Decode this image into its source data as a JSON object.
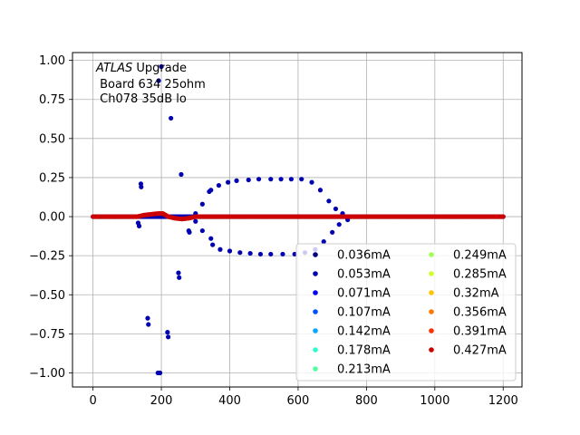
{
  "chart_data": {
    "type": "scatter",
    "title": "",
    "xlabel": "",
    "ylabel": "",
    "xlim": [
      -60,
      1255
    ],
    "ylim": [
      -1.09,
      1.05
    ],
    "x_ticks": [
      0,
      200,
      400,
      600,
      800,
      1000,
      1200
    ],
    "y_ticks": [
      -1.0,
      -0.75,
      -0.5,
      -0.25,
      0.0,
      0.25,
      0.5,
      0.75,
      1.0
    ],
    "x_tick_labels": [
      "0",
      "200",
      "400",
      "600",
      "800",
      "1000",
      "1200"
    ],
    "y_tick_labels": [
      "−1.00",
      "−0.75",
      "−0.50",
      "−0.25",
      "0.00",
      "0.25",
      "0.50",
      "0.75",
      "1.00"
    ],
    "grid": true,
    "legend_position": "lower-right",
    "legend_columns": 2,
    "annotation": {
      "italic": "ATLAS",
      "line1_rest": " Upgrade",
      "line2": " Board 634 25ohm",
      "line3": " Ch078 35dB lo"
    },
    "series": [
      {
        "name": "0.036mA",
        "color": "#00007f"
      },
      {
        "name": "0.053mA",
        "color": "#0000b2"
      },
      {
        "name": "0.071mA",
        "color": "#0000f0"
      },
      {
        "name": "0.107mA",
        "color": "#0054ff"
      },
      {
        "name": "0.142mA",
        "color": "#00a8ff"
      },
      {
        "name": "0.178mA",
        "color": "#29ffce"
      },
      {
        "name": "0.213mA",
        "color": "#52ff9e"
      },
      {
        "name": "0.249mA",
        "color": "#a0ff56"
      },
      {
        "name": "0.285mA",
        "color": "#ceff29"
      },
      {
        "name": "0.32mA",
        "color": "#ffc400"
      },
      {
        "name": "0.356mA",
        "color": "#ff7a00"
      },
      {
        "name": "0.391mA",
        "color": "#ff3000"
      },
      {
        "name": "0.427mA",
        "color": "#cc0000"
      }
    ],
    "outliers": [
      {
        "x": 200,
        "y": 0.96
      },
      {
        "x": 192,
        "y": 0.87
      },
      {
        "x": 228,
        "y": 0.63
      },
      {
        "x": 258,
        "y": 0.27
      },
      {
        "x": 140,
        "y": 0.21
      },
      {
        "x": 141,
        "y": 0.19
      },
      {
        "x": 132,
        "y": -0.04
      },
      {
        "x": 135,
        "y": -0.06
      },
      {
        "x": 160,
        "y": -0.65
      },
      {
        "x": 162,
        "y": -0.69
      },
      {
        "x": 190,
        "y": -1.0
      },
      {
        "x": 196,
        "y": -1.0
      },
      {
        "x": 218,
        "y": -0.74
      },
      {
        "x": 220,
        "y": -0.77
      },
      {
        "x": 250,
        "y": -0.36
      },
      {
        "x": 252,
        "y": -0.39
      },
      {
        "x": 280,
        "y": -0.09
      },
      {
        "x": 282,
        "y": -0.1
      }
    ],
    "upper_envelope": [
      {
        "x": 300,
        "y": 0.02
      },
      {
        "x": 320,
        "y": 0.08
      },
      {
        "x": 340,
        "y": 0.16
      },
      {
        "x": 345,
        "y": 0.17
      },
      {
        "x": 368,
        "y": 0.2
      },
      {
        "x": 395,
        "y": 0.22
      },
      {
        "x": 420,
        "y": 0.23
      },
      {
        "x": 455,
        "y": 0.235
      },
      {
        "x": 485,
        "y": 0.24
      },
      {
        "x": 520,
        "y": 0.24
      },
      {
        "x": 550,
        "y": 0.24
      },
      {
        "x": 580,
        "y": 0.24
      },
      {
        "x": 610,
        "y": 0.24
      },
      {
        "x": 640,
        "y": 0.22
      },
      {
        "x": 665,
        "y": 0.17
      },
      {
        "x": 690,
        "y": 0.1
      },
      {
        "x": 710,
        "y": 0.05
      },
      {
        "x": 730,
        "y": 0.02
      }
    ],
    "lower_envelope": [
      {
        "x": 300,
        "y": -0.03
      },
      {
        "x": 320,
        "y": -0.09
      },
      {
        "x": 345,
        "y": -0.14
      },
      {
        "x": 350,
        "y": -0.18
      },
      {
        "x": 372,
        "y": -0.21
      },
      {
        "x": 400,
        "y": -0.22
      },
      {
        "x": 430,
        "y": -0.23
      },
      {
        "x": 460,
        "y": -0.235
      },
      {
        "x": 490,
        "y": -0.24
      },
      {
        "x": 520,
        "y": -0.24
      },
      {
        "x": 555,
        "y": -0.24
      },
      {
        "x": 590,
        "y": -0.24
      },
      {
        "x": 620,
        "y": -0.23
      },
      {
        "x": 650,
        "y": -0.21
      },
      {
        "x": 675,
        "y": -0.16
      },
      {
        "x": 700,
        "y": -0.1
      },
      {
        "x": 720,
        "y": -0.05
      },
      {
        "x": 745,
        "y": -0.02
      }
    ],
    "dense_trace": {
      "x_start": 0,
      "x_end": 1200,
      "x_step": 4,
      "bump": [
        {
          "x": 130,
          "y": 0.0
        },
        {
          "x": 150,
          "y": 0.01
        },
        {
          "x": 170,
          "y": 0.015
        },
        {
          "x": 190,
          "y": 0.02
        },
        {
          "x": 205,
          "y": 0.02
        },
        {
          "x": 220,
          "y": 0.0
        },
        {
          "x": 240,
          "y": -0.01
        },
        {
          "x": 260,
          "y": -0.015
        },
        {
          "x": 280,
          "y": -0.01
        },
        {
          "x": 300,
          "y": 0.0
        }
      ]
    }
  }
}
